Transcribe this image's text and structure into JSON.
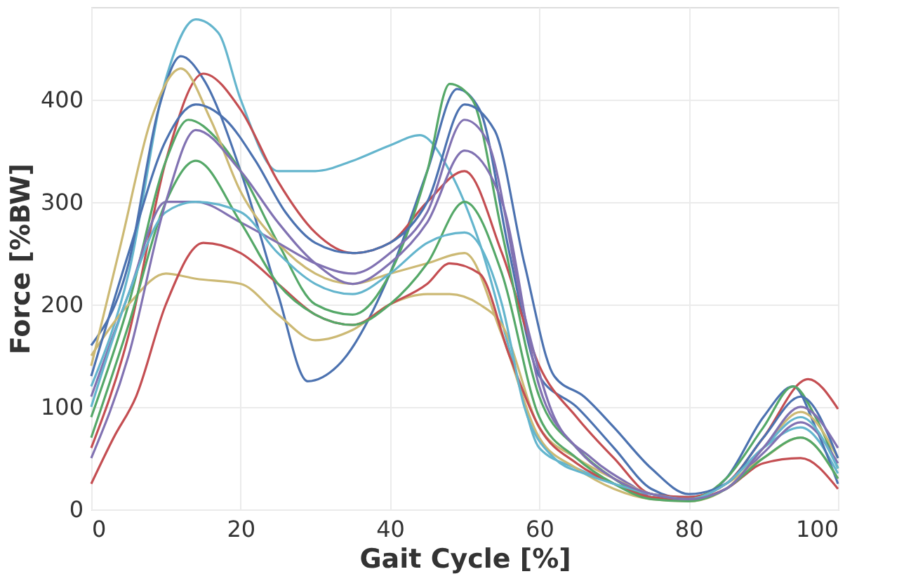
{
  "chart_data": {
    "type": "line",
    "xlabel": "Gait Cycle [%]",
    "ylabel": "Force [%BW]",
    "xlim": [
      0,
      100
    ],
    "ylim": [
      0,
      490
    ],
    "xticks": [
      0,
      20,
      40,
      60,
      80,
      100
    ],
    "yticks": [
      0,
      100,
      200,
      300,
      400
    ],
    "grid": true,
    "legend": false,
    "marker": "none",
    "line_style": "solid",
    "series": [
      {
        "color": "#64b5cd",
        "x": [
          0,
          5,
          10,
          14,
          17,
          20,
          25,
          30,
          35,
          40,
          44,
          48,
          52,
          57,
          60,
          65,
          70,
          75,
          80,
          85,
          90,
          95,
          100
        ],
        "values": [
          120,
          230,
          420,
          478,
          465,
          400,
          330,
          330,
          340,
          355,
          365,
          330,
          260,
          130,
          60,
          40,
          25,
          15,
          12,
          25,
          60,
          80,
          35
        ]
      },
      {
        "color": "#4c72b0",
        "x": [
          0,
          5,
          9,
          12,
          15,
          20,
          25,
          29,
          33,
          40,
          45,
          49,
          52,
          56,
          60,
          65,
          70,
          75,
          80,
          85,
          90,
          94,
          97,
          100
        ],
        "values": [
          160,
          240,
          390,
          442,
          420,
          330,
          210,
          125,
          140,
          230,
          330,
          410,
          390,
          250,
          130,
          100,
          60,
          20,
          10,
          30,
          90,
          120,
          80,
          25
        ]
      },
      {
        "color": "#c44e52",
        "x": [
          0,
          5,
          10,
          15,
          20,
          25,
          30,
          35,
          40,
          45,
          50,
          55,
          60,
          65,
          70,
          75,
          80,
          85,
          90,
          96,
          100
        ],
        "values": [
          60,
          170,
          340,
          425,
          390,
          320,
          270,
          250,
          260,
          300,
          330,
          250,
          140,
          90,
          50,
          15,
          12,
          25,
          70,
          127,
          98
        ]
      },
      {
        "color": "#55a868",
        "x": [
          0,
          5,
          10,
          13,
          17,
          20,
          25,
          30,
          35,
          40,
          45,
          48,
          51,
          55,
          60,
          65,
          70,
          75,
          80,
          85,
          90,
          94,
          97,
          100
        ],
        "values": [
          90,
          200,
          340,
          380,
          360,
          330,
          260,
          200,
          190,
          230,
          330,
          415,
          400,
          270,
          110,
          60,
          30,
          12,
          10,
          30,
          80,
          120,
          90,
          40
        ]
      },
      {
        "color": "#ccb974",
        "x": [
          0,
          4,
          8,
          12,
          16,
          20,
          25,
          30,
          35,
          40,
          45,
          50,
          55,
          60,
          65,
          70,
          75,
          80,
          85,
          90,
          95,
          100
        ],
        "values": [
          140,
          260,
          380,
          430,
          380,
          310,
          260,
          230,
          220,
          230,
          240,
          250,
          170,
          70,
          40,
          20,
          10,
          8,
          20,
          60,
          95,
          50
        ]
      },
      {
        "color": "#8172b2",
        "x": [
          0,
          5,
          10,
          14,
          20,
          25,
          30,
          35,
          40,
          45,
          50,
          53,
          58,
          62,
          67,
          72,
          76,
          80,
          85,
          90,
          95,
          100
        ],
        "values": [
          110,
          210,
          300,
          300,
          280,
          260,
          240,
          230,
          250,
          290,
          380,
          360,
          190,
          90,
          50,
          25,
          10,
          10,
          20,
          55,
          85,
          45
        ]
      },
      {
        "color": "#ccb974",
        "x": [
          0,
          5,
          10,
          14,
          20,
          25,
          30,
          35,
          40,
          45,
          48,
          52,
          55,
          60,
          65,
          70,
          75,
          80,
          85,
          90,
          95,
          100
        ],
        "values": [
          150,
          200,
          230,
          225,
          220,
          190,
          165,
          175,
          200,
          210,
          210,
          200,
          180,
          80,
          50,
          30,
          15,
          10,
          25,
          50,
          70,
          30
        ]
      },
      {
        "color": "#c44e52",
        "x": [
          0,
          3,
          6,
          10,
          15,
          20,
          25,
          30,
          35,
          40,
          45,
          48,
          52,
          56,
          60,
          65,
          70,
          75,
          80,
          85,
          90,
          95,
          100
        ],
        "values": [
          25,
          70,
          110,
          200,
          260,
          250,
          220,
          190,
          180,
          200,
          220,
          240,
          230,
          150,
          80,
          45,
          25,
          12,
          10,
          20,
          45,
          50,
          20
        ]
      },
      {
        "color": "#4c72b0",
        "x": [
          0,
          5,
          10,
          14,
          18,
          22,
          26,
          30,
          35,
          40,
          45,
          50,
          54,
          58,
          62,
          66,
          70,
          75,
          80,
          85,
          90,
          95,
          100
        ],
        "values": [
          130,
          250,
          360,
          395,
          380,
          340,
          290,
          260,
          250,
          260,
          300,
          395,
          370,
          240,
          130,
          110,
          80,
          40,
          15,
          25,
          70,
          110,
          50
        ]
      },
      {
        "color": "#55a868",
        "x": [
          0,
          5,
          10,
          14,
          20,
          25,
          30,
          35,
          40,
          45,
          50,
          55,
          60,
          65,
          70,
          75,
          80,
          85,
          90,
          95,
          100
        ],
        "values": [
          70,
          180,
          300,
          340,
          280,
          220,
          190,
          180,
          200,
          240,
          300,
          230,
          90,
          50,
          25,
          10,
          8,
          20,
          50,
          70,
          30
        ]
      },
      {
        "color": "#64b5cd",
        "x": [
          0,
          5,
          10,
          14,
          20,
          25,
          30,
          35,
          40,
          45,
          50,
          55,
          58,
          62,
          66,
          70,
          75,
          80,
          85,
          90,
          95,
          100
        ],
        "values": [
          100,
          210,
          290,
          300,
          290,
          250,
          220,
          210,
          230,
          260,
          270,
          200,
          100,
          50,
          35,
          25,
          15,
          10,
          25,
          60,
          90,
          40
        ]
      },
      {
        "color": "#8172b2",
        "x": [
          0,
          5,
          10,
          14,
          20,
          25,
          30,
          35,
          40,
          45,
          50,
          55,
          60,
          65,
          70,
          75,
          80,
          85,
          90,
          95,
          100
        ],
        "values": [
          50,
          150,
          300,
          370,
          330,
          280,
          240,
          220,
          240,
          280,
          350,
          300,
          120,
          60,
          30,
          15,
          10,
          20,
          60,
          100,
          60
        ]
      }
    ]
  }
}
